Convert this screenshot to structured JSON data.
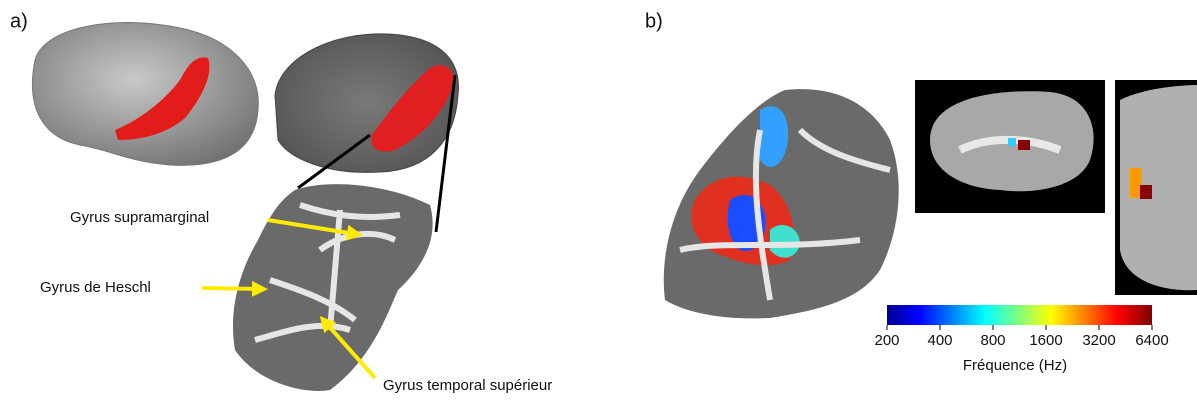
{
  "panel_a": {
    "label": "a)",
    "annotations": [
      "Gyrus supramarginal",
      "Gyrus de Heschl",
      "Gyrus temporal supérieur"
    ]
  },
  "panel_b": {
    "label": "b)",
    "colorbar": {
      "label": "Fréquence (Hz)",
      "lim": [
        200,
        6400
      ],
      "log": true,
      "ticks": [
        200,
        400,
        800,
        1600,
        3200,
        6400
      ]
    }
  }
}
